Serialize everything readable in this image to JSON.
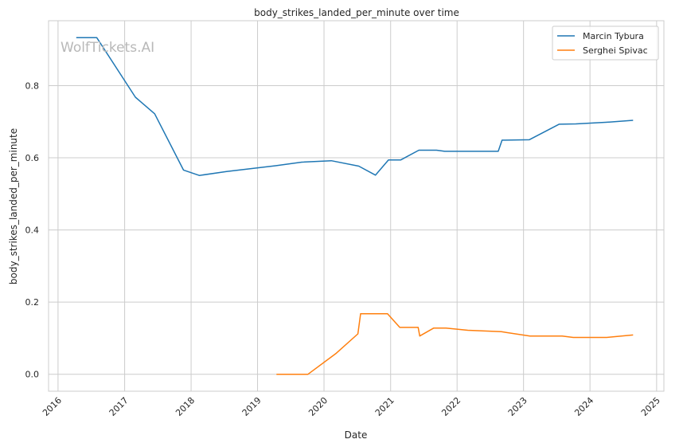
{
  "chart_data": {
    "type": "line",
    "title": "body_strikes_landed_per_minute over time",
    "xlabel": "Date",
    "ylabel": "body_strikes_landed_per_minute",
    "watermark": "WolfTickets.AI",
    "xlim": [
      "2015-11-10",
      "2025-02-10"
    ],
    "ylim": [
      -0.047,
      0.98
    ],
    "x_ticks": [
      "2016",
      "2017",
      "2018",
      "2019",
      "2020",
      "2021",
      "2022",
      "2023",
      "2024",
      "2025"
    ],
    "y_ticks": [
      "0.0",
      "0.2",
      "0.4",
      "0.6",
      "0.8"
    ],
    "grid": true,
    "legend_position": "top-right",
    "series": [
      {
        "name": "Marcin Tybura",
        "color": "#1f77b4",
        "points": [
          [
            "2016-04-10",
            0.933
          ],
          [
            "2016-08-01",
            0.933
          ],
          [
            "2017-03-01",
            0.768
          ],
          [
            "2017-06-15",
            0.722
          ],
          [
            "2017-11-20",
            0.566
          ],
          [
            "2018-02-15",
            0.551
          ],
          [
            "2018-07-15",
            0.562
          ],
          [
            "2019-04-10",
            0.578
          ],
          [
            "2019-09-01",
            0.588
          ],
          [
            "2020-02-10",
            0.592
          ],
          [
            "2020-07-10",
            0.577
          ],
          [
            "2020-10-10",
            0.552
          ],
          [
            "2020-12-20",
            0.594
          ],
          [
            "2021-02-25",
            0.594
          ],
          [
            "2021-06-05",
            0.621
          ],
          [
            "2021-09-10",
            0.621
          ],
          [
            "2021-10-25",
            0.618
          ],
          [
            "2022-08-15",
            0.618
          ],
          [
            "2022-09-05",
            0.649
          ],
          [
            "2023-02-01",
            0.65
          ],
          [
            "2023-07-15",
            0.693
          ],
          [
            "2023-10-15",
            0.694
          ],
          [
            "2024-04-15",
            0.699
          ],
          [
            "2024-08-25",
            0.704
          ]
        ]
      },
      {
        "name": "Serghei Spivac",
        "color": "#ff7f0e",
        "points": [
          [
            "2019-04-15",
            0.0
          ],
          [
            "2019-10-05",
            0.0
          ],
          [
            "2020-03-05",
            0.057
          ],
          [
            "2020-07-05",
            0.112
          ],
          [
            "2020-07-20",
            0.168
          ],
          [
            "2020-12-15",
            0.168
          ],
          [
            "2021-02-20",
            0.13
          ],
          [
            "2021-06-01",
            0.13
          ],
          [
            "2021-06-10",
            0.106
          ],
          [
            "2021-08-25",
            0.128
          ],
          [
            "2021-11-01",
            0.128
          ],
          [
            "2022-03-01",
            0.122
          ],
          [
            "2022-09-01",
            0.118
          ],
          [
            "2023-02-05",
            0.106
          ],
          [
            "2023-08-01",
            0.106
          ],
          [
            "2023-10-01",
            0.102
          ],
          [
            "2024-04-01",
            0.102
          ],
          [
            "2024-08-25",
            0.109
          ]
        ]
      }
    ]
  }
}
